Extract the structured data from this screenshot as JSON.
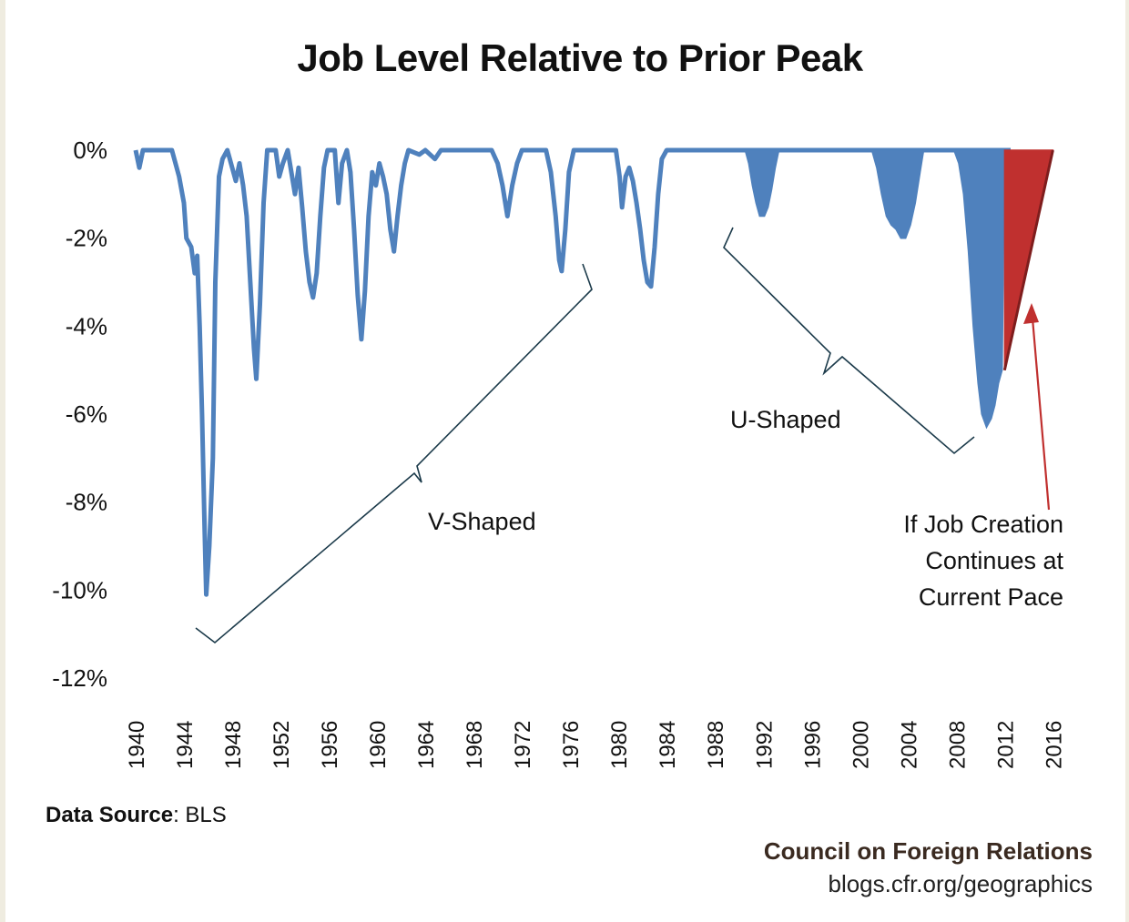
{
  "chart_data": {
    "type": "area",
    "title": "Job Level Relative to Prior Peak",
    "y_ticks": [
      "0%",
      "-2%",
      "-4%",
      "-6%",
      "-8%",
      "-10%",
      "-12%"
    ],
    "ylim": [
      -12,
      0
    ],
    "x_ticks": [
      "1940",
      "1944",
      "1948",
      "1952",
      "1956",
      "1960",
      "1964",
      "1968",
      "1972",
      "1976",
      "1980",
      "1984",
      "1988",
      "1992",
      "1996",
      "2000",
      "2004",
      "2008",
      "2012",
      "2016"
    ],
    "xlim": [
      1940,
      2016.5
    ],
    "grid": false,
    "series": [
      {
        "kind": "line",
        "color": "#4f81bd",
        "points": [
          [
            1940.0,
            0.0
          ],
          [
            1940.3,
            -0.4
          ],
          [
            1940.6,
            0.0
          ],
          [
            1943.0,
            0.0
          ],
          [
            1943.6,
            -0.6
          ],
          [
            1944.0,
            -1.2
          ],
          [
            1944.2,
            -2.0
          ],
          [
            1944.6,
            -2.2
          ],
          [
            1944.9,
            -2.8
          ],
          [
            1945.1,
            -2.4
          ],
          [
            1945.3,
            -4.0
          ],
          [
            1945.5,
            -6.0
          ],
          [
            1945.7,
            -8.5
          ],
          [
            1945.85,
            -10.1
          ],
          [
            1946.1,
            -9.0
          ],
          [
            1946.4,
            -7.0
          ],
          [
            1946.6,
            -3.0
          ],
          [
            1946.9,
            -0.6
          ],
          [
            1947.2,
            -0.2
          ],
          [
            1947.6,
            0.0
          ],
          [
            1947.9,
            -0.3
          ],
          [
            1948.3,
            -0.7
          ],
          [
            1948.6,
            -0.3
          ],
          [
            1948.9,
            -0.8
          ],
          [
            1949.2,
            -1.5
          ],
          [
            1949.5,
            -3.0
          ],
          [
            1949.8,
            -4.5
          ],
          [
            1950.0,
            -5.2
          ],
          [
            1950.3,
            -3.5
          ],
          [
            1950.6,
            -1.2
          ],
          [
            1950.9,
            0.0
          ],
          [
            1951.6,
            0.0
          ],
          [
            1951.9,
            -0.6
          ],
          [
            1952.2,
            -0.3
          ],
          [
            1952.6,
            0.0
          ],
          [
            1952.9,
            -0.5
          ],
          [
            1953.2,
            -1.0
          ],
          [
            1953.5,
            -0.4
          ],
          [
            1953.8,
            -1.3
          ],
          [
            1954.1,
            -2.3
          ],
          [
            1954.4,
            -3.0
          ],
          [
            1954.7,
            -3.35
          ],
          [
            1955.0,
            -2.8
          ],
          [
            1955.3,
            -1.5
          ],
          [
            1955.6,
            -0.4
          ],
          [
            1955.9,
            0.0
          ],
          [
            1956.5,
            0.0
          ],
          [
            1956.8,
            -1.2
          ],
          [
            1957.1,
            -0.3
          ],
          [
            1957.5,
            0.0
          ],
          [
            1957.8,
            -0.5
          ],
          [
            1958.1,
            -1.8
          ],
          [
            1958.4,
            -3.3
          ],
          [
            1958.7,
            -4.3
          ],
          [
            1959.0,
            -3.2
          ],
          [
            1959.3,
            -1.5
          ],
          [
            1959.6,
            -0.5
          ],
          [
            1959.9,
            -0.8
          ],
          [
            1960.2,
            -0.3
          ],
          [
            1960.5,
            -0.6
          ],
          [
            1960.8,
            -1.0
          ],
          [
            1961.1,
            -1.8
          ],
          [
            1961.4,
            -2.3
          ],
          [
            1961.7,
            -1.5
          ],
          [
            1962.0,
            -0.8
          ],
          [
            1962.3,
            -0.3
          ],
          [
            1962.6,
            0.0
          ],
          [
            1963.5,
            -0.1
          ],
          [
            1964.0,
            0.0
          ],
          [
            1964.8,
            -0.2
          ],
          [
            1965.3,
            0.0
          ],
          [
            1969.5,
            0.0
          ],
          [
            1970.0,
            -0.3
          ],
          [
            1970.4,
            -0.8
          ],
          [
            1970.8,
            -1.5
          ],
          [
            1971.2,
            -0.8
          ],
          [
            1971.6,
            -0.3
          ],
          [
            1972.0,
            0.0
          ],
          [
            1974.0,
            0.0
          ],
          [
            1974.4,
            -0.5
          ],
          [
            1974.8,
            -1.5
          ],
          [
            1975.1,
            -2.5
          ],
          [
            1975.3,
            -2.75
          ],
          [
            1975.6,
            -1.8
          ],
          [
            1975.9,
            -0.5
          ],
          [
            1976.3,
            0.0
          ],
          [
            1979.8,
            0.0
          ],
          [
            1980.1,
            -0.6
          ],
          [
            1980.3,
            -1.3
          ],
          [
            1980.6,
            -0.6
          ],
          [
            1980.9,
            -0.4
          ],
          [
            1981.2,
            -0.7
          ],
          [
            1981.5,
            -1.2
          ],
          [
            1981.8,
            -1.8
          ],
          [
            1982.1,
            -2.5
          ],
          [
            1982.4,
            -3.0
          ],
          [
            1982.7,
            -3.1
          ],
          [
            1983.0,
            -2.2
          ],
          [
            1983.3,
            -1.0
          ],
          [
            1983.6,
            -0.2
          ],
          [
            1984.0,
            0.0
          ],
          [
            1992.0,
            0.0
          ],
          [
            2012.5,
            0.0
          ]
        ]
      },
      {
        "kind": "area",
        "color": "#4f81bd",
        "points": [
          [
            1990.5,
            0.0
          ],
          [
            1990.8,
            -0.3
          ],
          [
            1991.1,
            -0.8
          ],
          [
            1991.4,
            -1.2
          ],
          [
            1991.7,
            -1.5
          ],
          [
            1992.1,
            -1.5
          ],
          [
            1992.4,
            -1.3
          ],
          [
            1992.7,
            -0.9
          ],
          [
            1993.0,
            -0.4
          ],
          [
            1993.3,
            0.0
          ],
          [
            2001.0,
            0.0
          ],
          [
            2001.4,
            -0.4
          ],
          [
            2001.8,
            -1.0
          ],
          [
            2002.2,
            -1.5
          ],
          [
            2002.6,
            -1.7
          ],
          [
            2003.0,
            -1.8
          ],
          [
            2003.4,
            -2.0
          ],
          [
            2003.8,
            -2.0
          ],
          [
            2004.2,
            -1.7
          ],
          [
            2004.6,
            -1.2
          ],
          [
            2005.0,
            -0.5
          ],
          [
            2005.3,
            0.0
          ],
          [
            2007.8,
            0.0
          ],
          [
            2008.2,
            -0.3
          ],
          [
            2008.6,
            -1.0
          ],
          [
            2009.0,
            -2.3
          ],
          [
            2009.4,
            -4.0
          ],
          [
            2009.8,
            -5.3
          ],
          [
            2010.1,
            -6.0
          ],
          [
            2010.5,
            -6.3
          ],
          [
            2010.9,
            -6.1
          ],
          [
            2011.2,
            -5.8
          ],
          [
            2011.5,
            -5.3
          ],
          [
            2011.8,
            -5.0
          ],
          [
            2012.0,
            0.0
          ]
        ]
      },
      {
        "kind": "projection",
        "color": "#c0302f",
        "points": [
          [
            2012.0,
            -5.0
          ],
          [
            2016.0,
            0.0
          ],
          [
            2012.0,
            0.0
          ]
        ]
      }
    ],
    "annotations": [
      {
        "text": "V-Shaped"
      },
      {
        "text": "U-Shaped"
      },
      {
        "text": "If Job Creation",
        "line2": "Continues at",
        "line3": "Current Pace"
      }
    ]
  },
  "footer": {
    "source_label": "Data Source",
    "source_value": ": BLS",
    "credit_org": "Council on Foreign Relations",
    "credit_url": "blogs.cfr.org/geographics"
  }
}
